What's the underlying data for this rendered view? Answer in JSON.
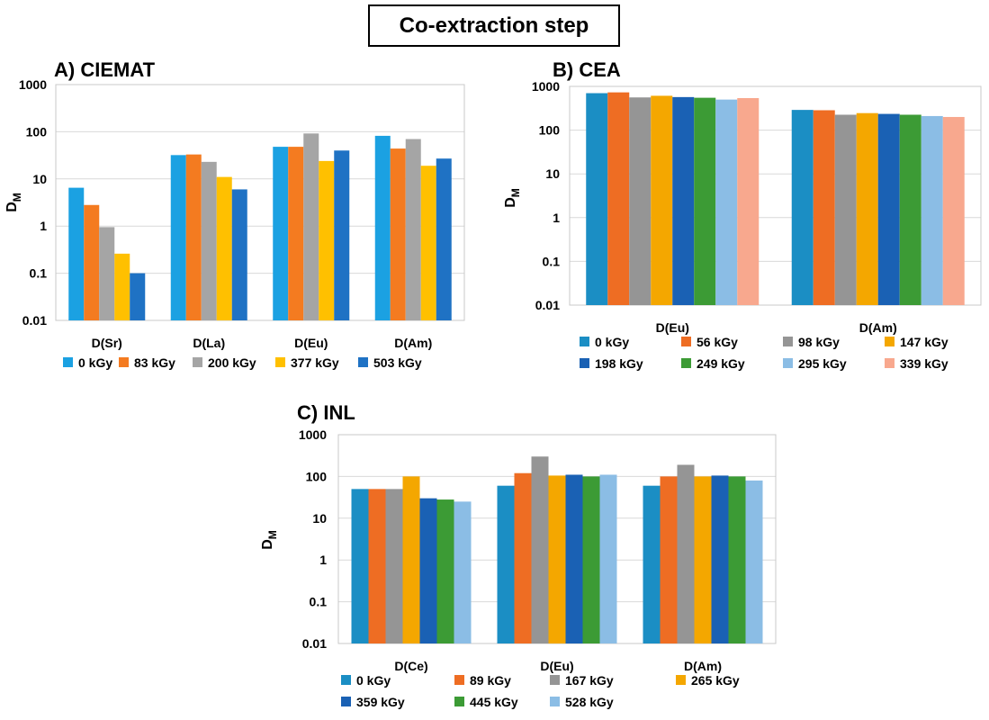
{
  "main_title": "Co-extraction step",
  "chart_data": [
    {
      "id": "A",
      "type": "bar",
      "title": "A) CIEMAT",
      "ylabel": "D",
      "ylabel_sub": "M",
      "yscale": "log",
      "ylim": [
        0.01,
        1000
      ],
      "yticks": [
        "0.01",
        "0.1",
        "1",
        "10",
        "100",
        "1000"
      ],
      "grid": true,
      "legend_position": "bottom",
      "categories": [
        "D(Sr)",
        "D(La)",
        "D(Eu)",
        "D(Am)"
      ],
      "series": [
        {
          "name": "0 kGy",
          "color": "#1ba1e2",
          "values": [
            6.5,
            32,
            48,
            82
          ]
        },
        {
          "name": "83 kGy",
          "color": "#f47b20",
          "values": [
            2.8,
            33,
            48,
            44
          ]
        },
        {
          "name": "200 kGy",
          "color": "#a5a5a5",
          "values": [
            0.95,
            23,
            92,
            70
          ]
        },
        {
          "name": "377 kGy",
          "color": "#ffc000",
          "values": [
            0.26,
            11,
            24,
            19
          ]
        },
        {
          "name": "503 kGy",
          "color": "#1f72c4",
          "values": [
            0.1,
            6,
            40,
            27
          ]
        }
      ]
    },
    {
      "id": "B",
      "type": "bar",
      "title": "B) CEA",
      "ylabel": "D",
      "ylabel_sub": "M",
      "yscale": "log",
      "ylim": [
        0.01,
        1000
      ],
      "yticks": [
        "0.01",
        "0.1",
        "1",
        "10",
        "100",
        "1000"
      ],
      "grid": true,
      "legend_position": "bottom",
      "categories": [
        "D(Eu)",
        "D(Am)"
      ],
      "series": [
        {
          "name": "0 kGy",
          "color": "#1b8ec4",
          "values": [
            700,
            290
          ]
        },
        {
          "name": "56 kGy",
          "color": "#ee6d23",
          "values": [
            730,
            285
          ]
        },
        {
          "name": "98 kGy",
          "color": "#959595",
          "values": [
            560,
            225
          ]
        },
        {
          "name": "147 kGy",
          "color": "#f4a700",
          "values": [
            610,
            245
          ]
        },
        {
          "name": "198 kGy",
          "color": "#1a61b4",
          "values": [
            570,
            235
          ]
        },
        {
          "name": "249 kGy",
          "color": "#3c9b35",
          "values": [
            550,
            225
          ]
        },
        {
          "name": "295 kGy",
          "color": "#8bbde5",
          "values": [
            500,
            210
          ]
        },
        {
          "name": "339 kGy",
          "color": "#f8a88e",
          "values": [
            540,
            200
          ]
        }
      ]
    },
    {
      "id": "C",
      "type": "bar",
      "title": "C) INL",
      "ylabel": "D",
      "ylabel_sub": "M",
      "yscale": "log",
      "ylim": [
        0.01,
        1000
      ],
      "yticks": [
        "0.01",
        "0.1",
        "1",
        "10",
        "100",
        "1000"
      ],
      "grid": true,
      "legend_position": "bottom",
      "categories": [
        "D(Ce)",
        "D(Eu)",
        "D(Am)"
      ],
      "series": [
        {
          "name": "0 kGy",
          "color": "#1b8ec4",
          "values": [
            50,
            60,
            60
          ]
        },
        {
          "name": "89 kGy",
          "color": "#ee6d23",
          "values": [
            50,
            120,
            100
          ]
        },
        {
          "name": "167 kGy",
          "color": "#959595",
          "values": [
            50,
            300,
            190
          ]
        },
        {
          "name": "265 kGy",
          "color": "#f4a700",
          "values": [
            100,
            105,
            100
          ]
        },
        {
          "name": "359 kGy",
          "color": "#1a61b4",
          "values": [
            30,
            110,
            105
          ]
        },
        {
          "name": "445 kGy",
          "color": "#3c9b35",
          "values": [
            28,
            100,
            100
          ]
        },
        {
          "name": "528 kGy",
          "color": "#8bbde5",
          "values": [
            25,
            110,
            80
          ]
        }
      ]
    }
  ]
}
